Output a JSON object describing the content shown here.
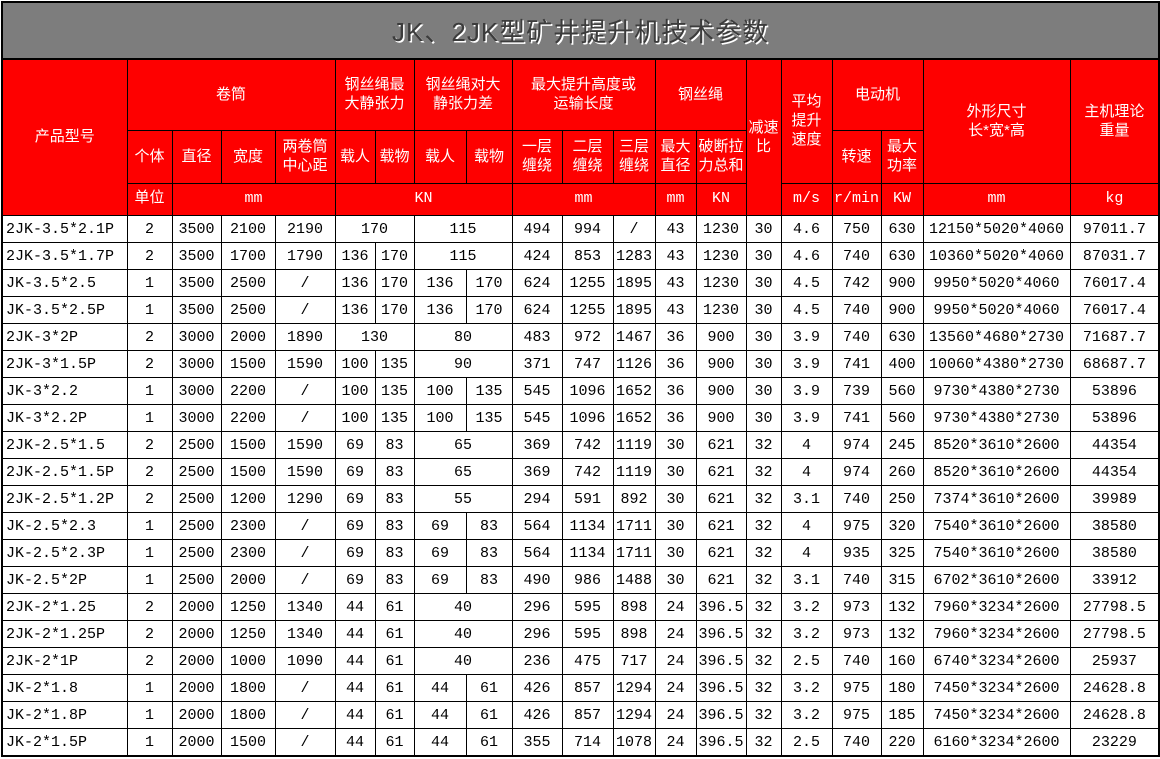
{
  "title": "JK、2JK型矿井提升机技术参数",
  "colors": {
    "title_bg": "#7d7d7d",
    "header_bg": "#fe0000",
    "header_text": "#ffffff",
    "border": "#000000",
    "body_bg": "#ffffff"
  },
  "header": {
    "product_model": "产品型号",
    "unit_label": "单位",
    "groups": {
      "drum": "卷筒",
      "max_static_tension": "钢丝绳最\n大静张力",
      "static_tension_diff": "钢丝绳对大\n静张力差",
      "max_lift_height": "最大提升高度或\n运输长度",
      "wire_rope": "钢丝绳",
      "reduction_ratio": "减速\n比",
      "avg_lift_speed": "平均\n提升\n速度",
      "motor": "电动机",
      "dimensions": "外形尺寸\n长*宽*高",
      "weight": "主机理论\n重量"
    },
    "subs": {
      "count": "个体",
      "diameter": "直径",
      "width": "宽度",
      "center_dist": "两卷筒\n中心距",
      "manned": "载人",
      "cargo": "载物",
      "layer1": "一层\n缠绕",
      "layer2": "二层\n缠绕",
      "layer3": "三层\n缠绕",
      "max_dia": "最大\n直径",
      "breaking_force": "破断拉\n力总和",
      "rpm": "转速",
      "max_power": "最大\n功率"
    },
    "units": {
      "mm": "mm",
      "kn": "KN",
      "ms": "m/s",
      "rmin": "r/min",
      "kw": "KW",
      "kg": "kg"
    }
  },
  "table": {
    "rows": [
      [
        "2JK-3.5*2.1P",
        "2",
        "3500",
        "2100",
        "2190",
        [
          "170",
          2
        ],
        [
          "115",
          2
        ],
        "494",
        "994",
        "/",
        "43",
        "1230",
        "30",
        "4.6",
        "750",
        "630",
        "12150*5020*4060",
        "97011.7"
      ],
      [
        "2JK-3.5*1.7P",
        "2",
        "3500",
        "1700",
        "1790",
        "136",
        "170",
        [
          "115",
          2
        ],
        "424",
        "853",
        "1283",
        "43",
        "1230",
        "30",
        "4.6",
        "740",
        "630",
        "10360*5020*4060",
        "87031.7"
      ],
      [
        "JK-3.5*2.5",
        "1",
        "3500",
        "2500",
        "/",
        "136",
        "170",
        "136",
        "170",
        "624",
        "1255",
        "1895",
        "43",
        "1230",
        "30",
        "4.5",
        "742",
        "900",
        "9950*5020*4060",
        "76017.4"
      ],
      [
        "JK-3.5*2.5P",
        "1",
        "3500",
        "2500",
        "/",
        "136",
        "170",
        "136",
        "170",
        "624",
        "1255",
        "1895",
        "43",
        "1230",
        "30",
        "4.5",
        "740",
        "900",
        "9950*5020*4060",
        "76017.4"
      ],
      [
        "2JK-3*2P",
        "2",
        "3000",
        "2000",
        "1890",
        [
          "130",
          2
        ],
        [
          "80",
          2
        ],
        "483",
        "972",
        "1467",
        "36",
        "900",
        "30",
        "3.9",
        "740",
        "630",
        "13560*4680*2730",
        "71687.7"
      ],
      [
        "2JK-3*1.5P",
        "2",
        "3000",
        "1500",
        "1590",
        "100",
        "135",
        [
          "90",
          2
        ],
        "371",
        "747",
        "1126",
        "36",
        "900",
        "30",
        "3.9",
        "741",
        "400",
        "10060*4380*2730",
        "68687.7"
      ],
      [
        "JK-3*2.2",
        "1",
        "3000",
        "2200",
        "/",
        "100",
        "135",
        "100",
        "135",
        "545",
        "1096",
        "1652",
        "36",
        "900",
        "30",
        "3.9",
        "739",
        "560",
        "9730*4380*2730",
        "53896"
      ],
      [
        "JK-3*2.2P",
        "1",
        "3000",
        "2200",
        "/",
        "100",
        "135",
        "100",
        "135",
        "545",
        "1096",
        "1652",
        "36",
        "900",
        "30",
        "3.9",
        "741",
        "560",
        "9730*4380*2730",
        "53896"
      ],
      [
        "2JK-2.5*1.5",
        "2",
        "2500",
        "1500",
        "1590",
        "69",
        "83",
        [
          "65",
          2
        ],
        "369",
        "742",
        "1119",
        "30",
        "621",
        "32",
        "4",
        "974",
        "245",
        "8520*3610*2600",
        "44354"
      ],
      [
        "2JK-2.5*1.5P",
        "2",
        "2500",
        "1500",
        "1590",
        "69",
        "83",
        [
          "65",
          2
        ],
        "369",
        "742",
        "1119",
        "30",
        "621",
        "32",
        "4",
        "974",
        "260",
        "8520*3610*2600",
        "44354"
      ],
      [
        "2JK-2.5*1.2P",
        "2",
        "2500",
        "1200",
        "1290",
        "69",
        "83",
        [
          "55",
          2
        ],
        "294",
        "591",
        "892",
        "30",
        "621",
        "32",
        "3.1",
        "740",
        "250",
        "7374*3610*2600",
        "39989"
      ],
      [
        "JK-2.5*2.3",
        "1",
        "2500",
        "2300",
        "/",
        "69",
        "83",
        "69",
        "83",
        "564",
        "1134",
        "1711",
        "30",
        "621",
        "32",
        "4",
        "975",
        "320",
        "7540*3610*2600",
        "38580"
      ],
      [
        "JK-2.5*2.3P",
        "1",
        "2500",
        "2300",
        "/",
        "69",
        "83",
        "69",
        "83",
        "564",
        "1134",
        "1711",
        "30",
        "621",
        "32",
        "4",
        "935",
        "325",
        "7540*3610*2600",
        "38580"
      ],
      [
        "JK-2.5*2P",
        "1",
        "2500",
        "2000",
        "/",
        "69",
        "83",
        "69",
        "83",
        "490",
        "986",
        "1488",
        "30",
        "621",
        "32",
        "3.1",
        "740",
        "315",
        "6702*3610*2600",
        "33912"
      ],
      [
        "2JK-2*1.25",
        "2",
        "2000",
        "1250",
        "1340",
        "44",
        "61",
        [
          "40",
          2
        ],
        "296",
        "595",
        "898",
        "24",
        "396.5",
        "32",
        "3.2",
        "973",
        "132",
        "7960*3234*2600",
        "27798.5"
      ],
      [
        "2JK-2*1.25P",
        "2",
        "2000",
        "1250",
        "1340",
        "44",
        "61",
        [
          "40",
          2
        ],
        "296",
        "595",
        "898",
        "24",
        "396.5",
        "32",
        "3.2",
        "973",
        "132",
        "7960*3234*2600",
        "27798.5"
      ],
      [
        "2JK-2*1P",
        "2",
        "2000",
        "1000",
        "1090",
        "44",
        "61",
        [
          "40",
          2
        ],
        "236",
        "475",
        "717",
        "24",
        "396.5",
        "32",
        "2.5",
        "740",
        "160",
        "6740*3234*2600",
        "25937"
      ],
      [
        "JK-2*1.8",
        "1",
        "2000",
        "1800",
        "/",
        "44",
        "61",
        "44",
        "61",
        "426",
        "857",
        "1294",
        "24",
        "396.5",
        "32",
        "3.2",
        "975",
        "180",
        "7450*3234*2600",
        "24628.8"
      ],
      [
        "JK-2*1.8P",
        "1",
        "2000",
        "1800",
        "/",
        "44",
        "61",
        "44",
        "61",
        "426",
        "857",
        "1294",
        "24",
        "396.5",
        "32",
        "3.2",
        "975",
        "185",
        "7450*3234*2600",
        "24628.8"
      ],
      [
        "JK-2*1.5P",
        "1",
        "2000",
        "1500",
        "/",
        "44",
        "61",
        "44",
        "61",
        "355",
        "714",
        "1078",
        "24",
        "396.5",
        "32",
        "2.5",
        "740",
        "220",
        "6160*3234*2600",
        "23229"
      ]
    ]
  }
}
